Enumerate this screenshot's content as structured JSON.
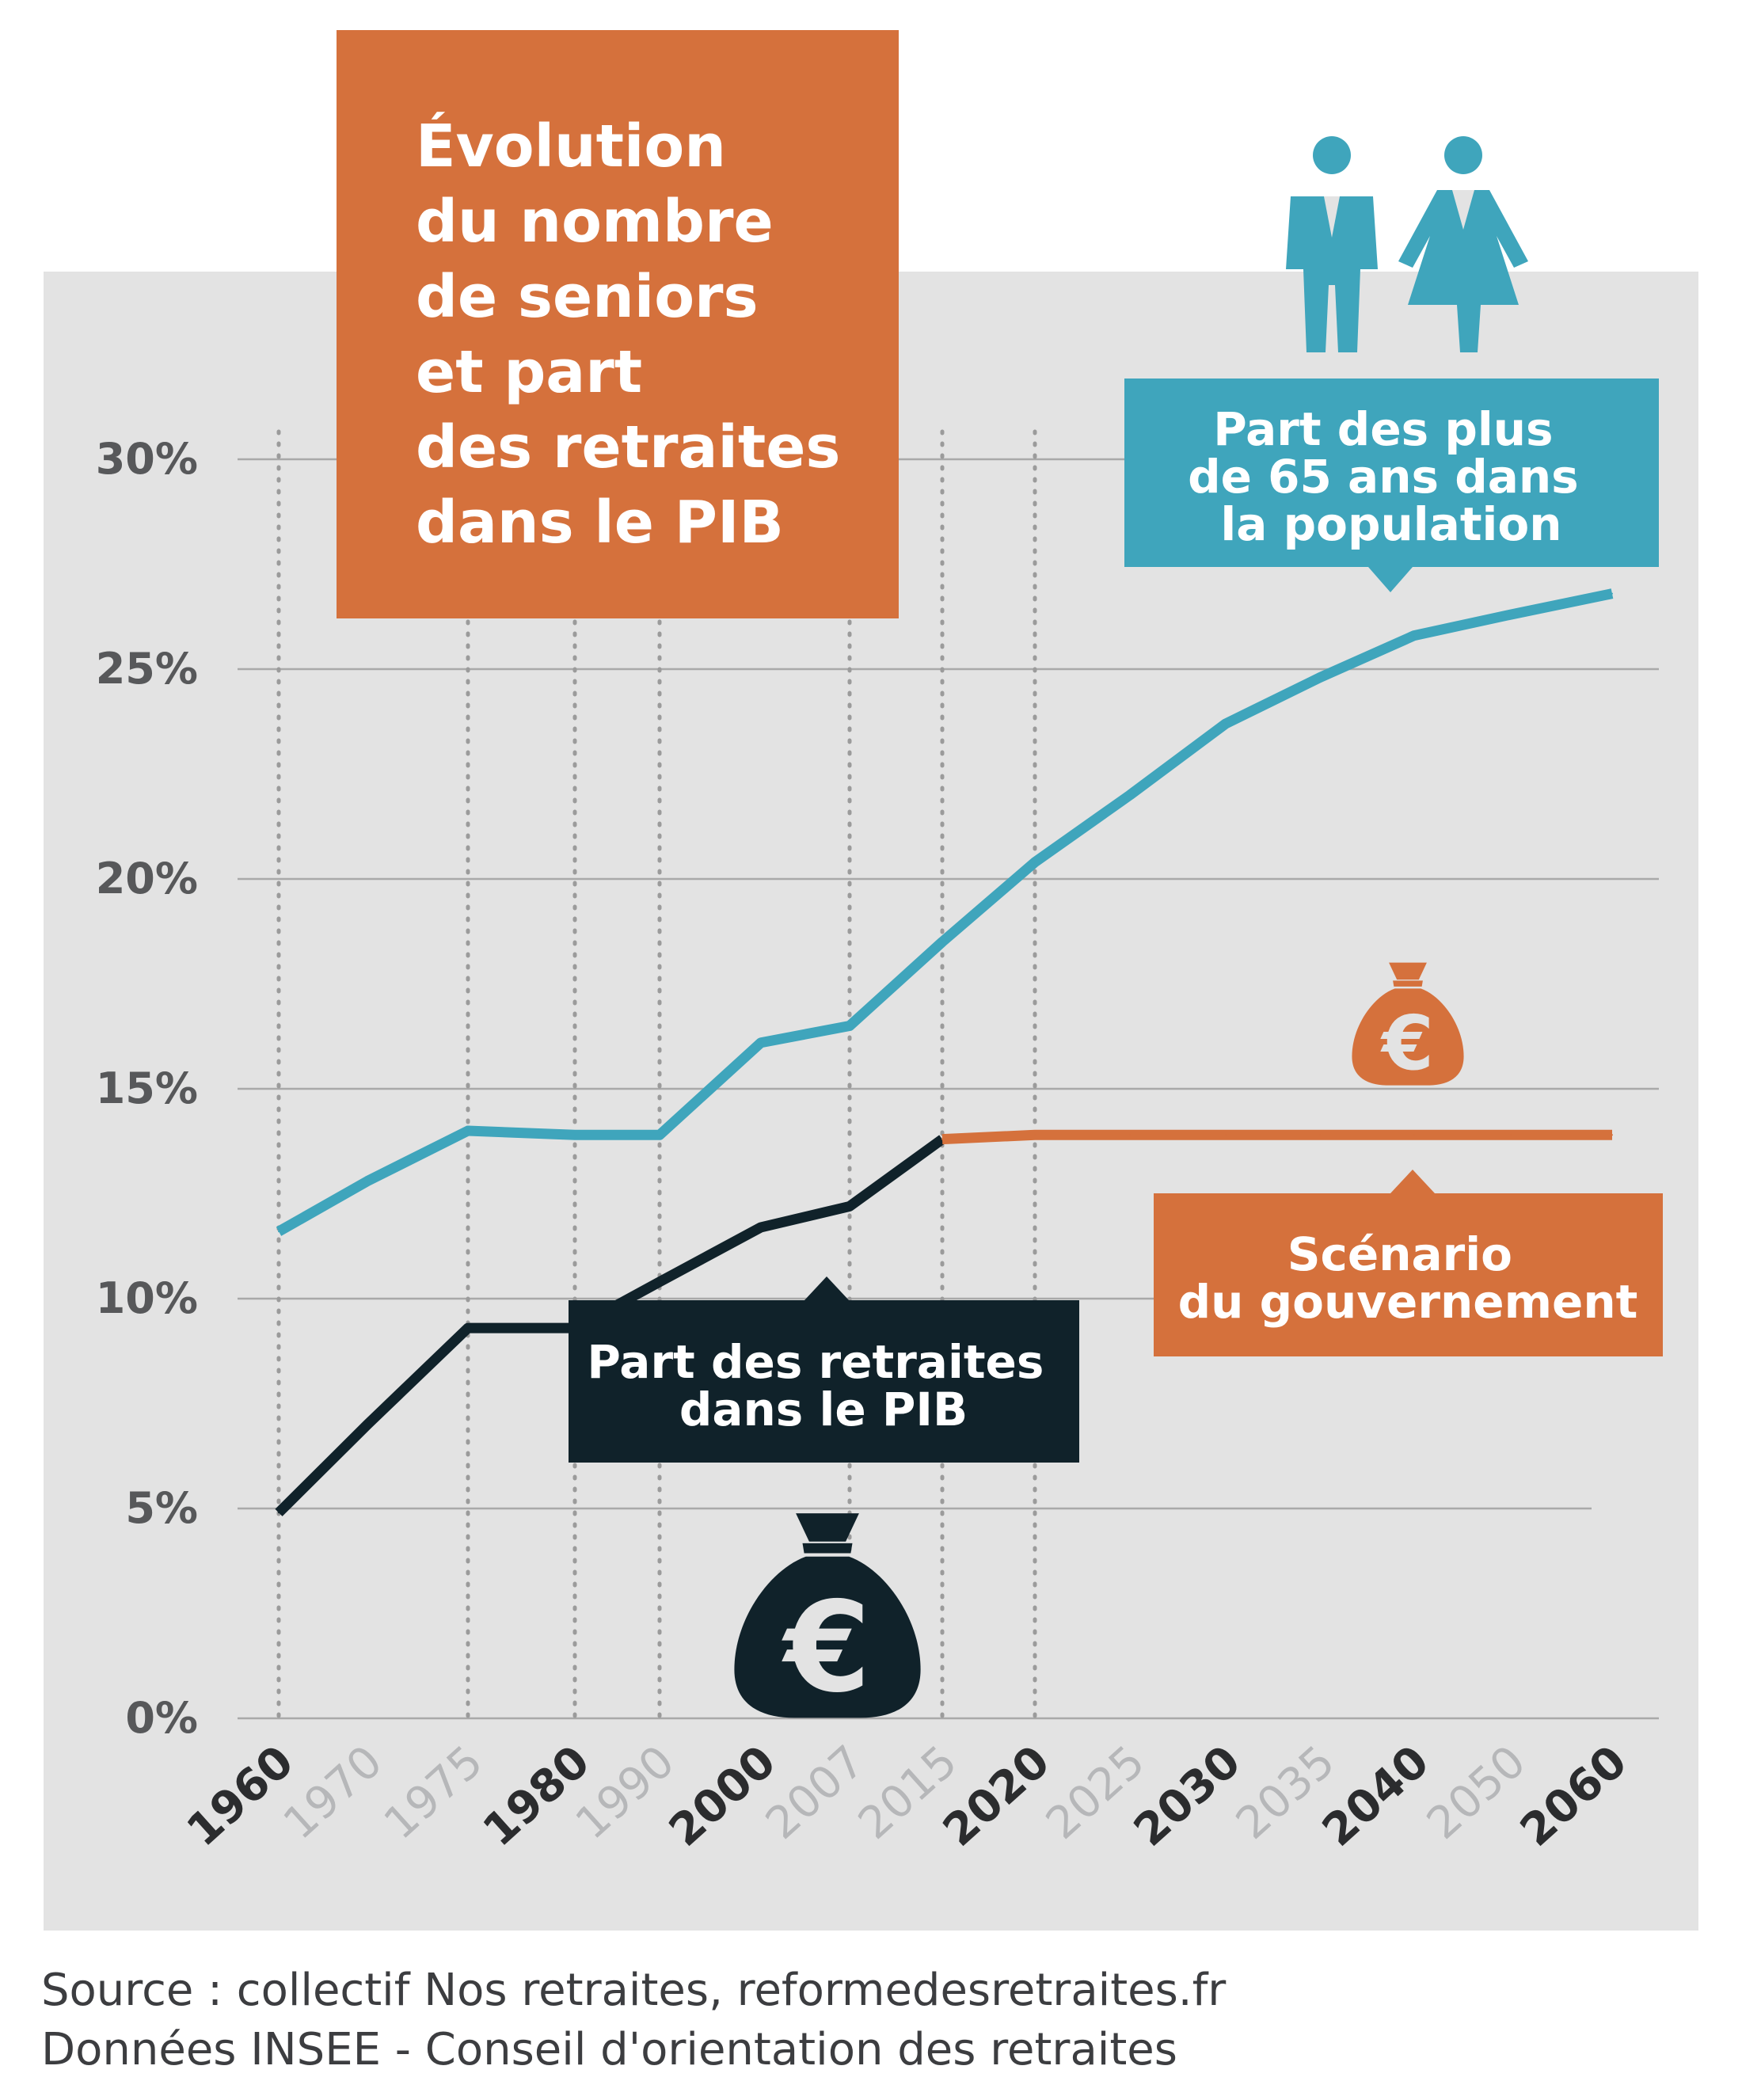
{
  "title": [
    "Évolution",
    "du nombre",
    "de seniors",
    "et part",
    "des retraites",
    "dans le PIB"
  ],
  "colors": {
    "orange": "#d5713c",
    "teal": "#3fa5bc",
    "dark": "#10222a",
    "panel": "#e3e3e3",
    "grid": "#a9a9a9"
  },
  "callouts": {
    "population": [
      "Part des plus",
      "de 65 ans dans",
      "la population"
    ],
    "pib": [
      "Part des retraites",
      "dans le PIB"
    ],
    "gouvernement": [
      "Scénario",
      "du gouvernement"
    ]
  },
  "icons": [
    "man-icon",
    "woman-icon",
    "money-bag-euro-icon"
  ],
  "source": [
    "Source : collectif Nos retraites, reformedesretraites.fr",
    "Données INSEE - Conseil d'orientation des retraites"
  ],
  "chart_data": {
    "type": "line",
    "title": "Évolution du nombre de seniors et part des retraites dans le PIB",
    "categories": [
      "1960",
      "1970",
      "1975",
      "1980",
      "1990",
      "2000",
      "2007",
      "2015",
      "2020",
      "2025",
      "2030",
      "2035",
      "2040",
      "2050",
      "2060"
    ],
    "bold_categories": [
      "1960",
      "1980",
      "2000",
      "2020",
      "2030",
      "2040",
      "2060"
    ],
    "dotted_gridlines_at": [
      "1960",
      "1975",
      "1980",
      "1990",
      "2007",
      "2015",
      "2020"
    ],
    "y_ticks": [
      "0%",
      "5%",
      "10%",
      "15%",
      "20%",
      "25%",
      "30%"
    ],
    "ylim": [
      0,
      30
    ],
    "y_unit": "%",
    "series": [
      {
        "name": "Part des plus de 65 ans dans la population",
        "color": "#3fa5bc",
        "values": [
          11.6,
          12.8,
          14.0,
          13.9,
          13.9,
          16.1,
          16.5,
          18.5,
          20.4,
          22.0,
          23.7,
          24.8,
          25.8,
          26.3,
          26.8
        ]
      },
      {
        "name": "Part des retraites dans le PIB",
        "color": "#10222a",
        "values": [
          4.9,
          7.0,
          9.3,
          9.3,
          10.4,
          11.7,
          12.2,
          13.8,
          null,
          null,
          null,
          null,
          null,
          null,
          null
        ]
      },
      {
        "name": "Scénario du gouvernement",
        "color": "#d5713c",
        "values": [
          null,
          null,
          null,
          null,
          null,
          null,
          null,
          13.8,
          13.9,
          13.9,
          13.9,
          13.9,
          13.9,
          13.9,
          13.9
        ]
      }
    ]
  }
}
